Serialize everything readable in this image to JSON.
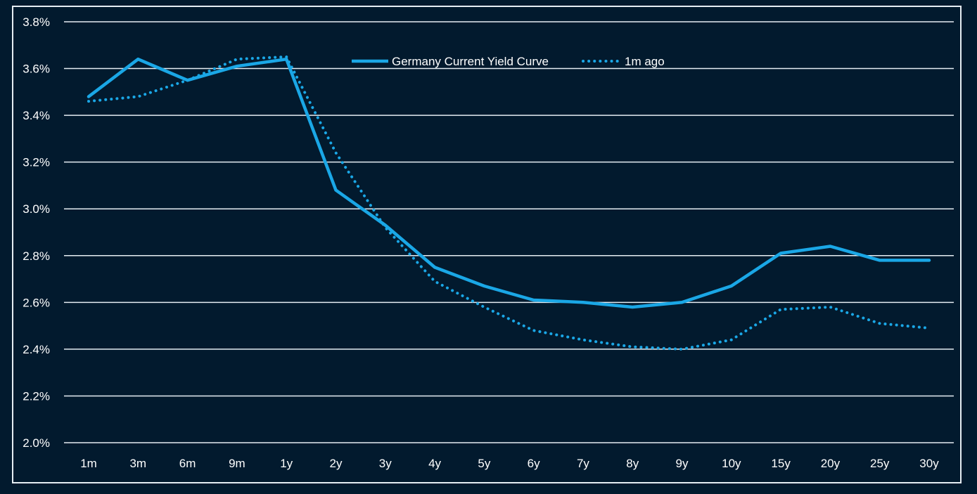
{
  "chart_data": {
    "type": "line",
    "title": "",
    "xlabel": "",
    "ylabel": "",
    "categories": [
      "1m",
      "3m",
      "6m",
      "9m",
      "1y",
      "2y",
      "3y",
      "4y",
      "5y",
      "6y",
      "7y",
      "8y",
      "9y",
      "10y",
      "15y",
      "20y",
      "25y",
      "30y"
    ],
    "ylim": [
      2.0,
      3.8
    ],
    "y_ticks": [
      2.0,
      2.2,
      2.4,
      2.6,
      2.8,
      3.0,
      3.2,
      3.4,
      3.6,
      3.8
    ],
    "y_tick_labels": [
      "2.0%",
      "2.2%",
      "2.4%",
      "2.6%",
      "2.8%",
      "3.0%",
      "3.2%",
      "3.4%",
      "3.6%",
      "3.8%"
    ],
    "grid": true,
    "legend_position": "top-center",
    "series": [
      {
        "name": "Germany Current Yield Curve",
        "style": "solid",
        "color": "#1aa7e6",
        "values": [
          3.48,
          3.64,
          3.55,
          3.61,
          3.64,
          3.08,
          2.93,
          2.75,
          2.67,
          2.61,
          2.6,
          2.58,
          2.6,
          2.67,
          2.81,
          2.84,
          2.78,
          2.78
        ]
      },
      {
        "name": "1m ago",
        "style": "dotted",
        "color": "#1aa7e6",
        "values": [
          3.46,
          3.48,
          3.55,
          3.64,
          3.65,
          3.24,
          2.92,
          2.69,
          2.58,
          2.48,
          2.44,
          2.41,
          2.4,
          2.44,
          2.57,
          2.58,
          2.51,
          2.49
        ]
      }
    ]
  },
  "colors": {
    "background": "#021a2e",
    "grid": "#e6edf3",
    "text": "#ffffff"
  }
}
